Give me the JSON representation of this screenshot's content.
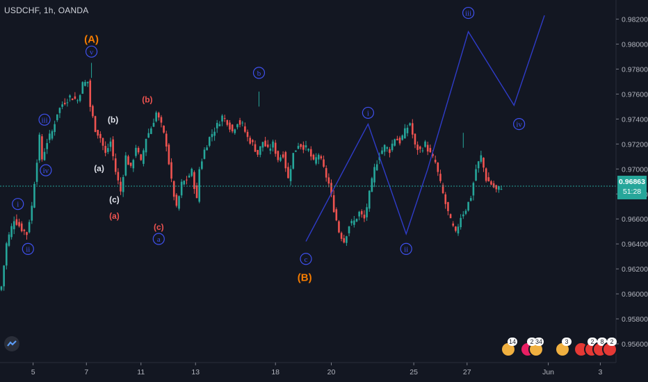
{
  "header": {
    "symbol_line": "USDCHF, 1h, OANDA"
  },
  "price_tag": {
    "price": "0.96863",
    "countdown": "51:28"
  },
  "colors": {
    "background": "#131722",
    "up": "#26a69a",
    "down": "#ef5350",
    "wave_blue": "#3f51f0",
    "wave_orange": "#f57c00",
    "wave_red": "#ef5350",
    "wave_white": "#e0e3eb",
    "price_line": "#26a69a"
  },
  "events": {
    "counts": [
      "14",
      "2",
      "34",
      "3",
      "2",
      "8",
      "2"
    ]
  },
  "chart_data": {
    "type": "candlestick",
    "ylim": [
      0.9545,
      0.9832
    ],
    "yticks": [
      "0.95600",
      "0.95800",
      "0.96000",
      "0.96200",
      "0.96400",
      "0.96600",
      "0.96800",
      "0.97000",
      "0.97200",
      "0.97400",
      "0.97600",
      "0.97800",
      "0.98000",
      "0.98200"
    ],
    "xticks": [
      "5",
      "7",
      "11",
      "13",
      "18",
      "20",
      "25",
      "27",
      "Jun",
      "3"
    ],
    "last_price": 0.96863,
    "price_path": [
      [
        0,
        0.9606
      ],
      [
        2,
        0.964
      ],
      [
        5,
        0.966
      ],
      [
        8,
        0.9652
      ],
      [
        10,
        0.9648
      ],
      [
        12,
        0.967
      ],
      [
        13,
        0.969
      ],
      [
        15,
        0.9725
      ],
      [
        16,
        0.9708
      ],
      [
        18,
        0.9722
      ],
      [
        20,
        0.973
      ],
      [
        22,
        0.9745
      ],
      [
        24,
        0.9752
      ],
      [
        27,
        0.9758
      ],
      [
        30,
        0.9755
      ],
      [
        32,
        0.9768
      ],
      [
        34,
        0.977
      ],
      [
        35,
        0.975
      ],
      [
        37,
        0.9732
      ],
      [
        39,
        0.9725
      ],
      [
        41,
        0.9712
      ],
      [
        43,
        0.9722
      ],
      [
        45,
        0.9698
      ],
      [
        47,
        0.9682
      ],
      [
        49,
        0.971
      ],
      [
        51,
        0.97
      ],
      [
        53,
        0.9718
      ],
      [
        55,
        0.9705
      ],
      [
        57,
        0.9725
      ],
      [
        59,
        0.9733
      ],
      [
        61,
        0.9745
      ],
      [
        63,
        0.9735
      ],
      [
        65,
        0.972
      ],
      [
        67,
        0.969
      ],
      [
        69,
        0.9668
      ],
      [
        71,
        0.9688
      ],
      [
        73,
        0.9692
      ],
      [
        75,
        0.9698
      ],
      [
        77,
        0.9675
      ],
      [
        78,
        0.97
      ],
      [
        80,
        0.9715
      ],
      [
        82,
        0.9725
      ],
      [
        85,
        0.9735
      ],
      [
        87,
        0.9742
      ],
      [
        89,
        0.9738
      ],
      [
        91,
        0.973
      ],
      [
        93,
        0.9738
      ],
      [
        95,
        0.9735
      ],
      [
        97,
        0.9725
      ],
      [
        99,
        0.972
      ],
      [
        101,
        0.9712
      ],
      [
        103,
        0.9722
      ],
      [
        105,
        0.9715
      ],
      [
        107,
        0.972
      ],
      [
        109,
        0.9708
      ],
      [
        111,
        0.9712
      ],
      [
        113,
        0.9692
      ],
      [
        115,
        0.9712
      ],
      [
        117,
        0.972
      ],
      [
        119,
        0.9718
      ],
      [
        121,
        0.9715
      ],
      [
        123,
        0.9705
      ],
      [
        125,
        0.9712
      ],
      [
        127,
        0.97
      ],
      [
        129,
        0.9688
      ],
      [
        131,
        0.9668
      ],
      [
        133,
        0.965
      ],
      [
        135,
        0.9642
      ],
      [
        137,
        0.9655
      ],
      [
        139,
        0.9658
      ],
      [
        141,
        0.9665
      ],
      [
        143,
        0.966
      ],
      [
        145,
        0.968
      ],
      [
        147,
        0.97
      ],
      [
        149,
        0.9712
      ],
      [
        151,
        0.9718
      ],
      [
        153,
        0.9715
      ],
      [
        155,
        0.9725
      ],
      [
        157,
        0.9722
      ],
      [
        159,
        0.973
      ],
      [
        161,
        0.9737
      ],
      [
        163,
        0.9718
      ],
      [
        165,
        0.9715
      ],
      [
        167,
        0.972
      ],
      [
        169,
        0.9712
      ],
      [
        171,
        0.9705
      ],
      [
        173,
        0.9688
      ],
      [
        175,
        0.9672
      ],
      [
        177,
        0.9658
      ],
      [
        179,
        0.9648
      ],
      [
        181,
        0.9662
      ],
      [
        183,
        0.9668
      ],
      [
        185,
        0.9678
      ],
      [
        187,
        0.97
      ],
      [
        189,
        0.971
      ],
      [
        191,
        0.9692
      ],
      [
        193,
        0.9688
      ],
      [
        195,
        0.9683
      ],
      [
        197,
        0.9686
      ]
    ],
    "wave_path_blue": [
      [
        0.97,
        0.966
      ],
      [
        0.97,
        0.968
      ]
    ],
    "labels": [
      {
        "text": "(A)",
        "color": "orange",
        "price": 0.9804,
        "slot": 35.5
      },
      {
        "text": "v",
        "circled": true,
        "color": "blue",
        "price": 0.9794,
        "slot": 35.5
      },
      {
        "text": "iii",
        "circled": true,
        "color": "blue",
        "price": 0.97395,
        "slot": 17
      },
      {
        "text": "iv",
        "circled": true,
        "color": "blue",
        "price": 0.9699,
        "slot": 17.5
      },
      {
        "text": "i",
        "circled": true,
        "color": "blue",
        "price": 0.9672,
        "slot": 6.5
      },
      {
        "text": "ii",
        "circled": true,
        "color": "blue",
        "price": 0.9636,
        "slot": 10.5
      },
      {
        "text": "(b)",
        "color": "white",
        "price": 0.974,
        "slot": 44
      },
      {
        "text": "(a)",
        "color": "white",
        "price": 0.9701,
        "slot": 38.5
      },
      {
        "text": "(c)",
        "color": "white",
        "price": 0.9676,
        "slot": 44.5
      },
      {
        "text": "(a)",
        "color": "red",
        "price": 0.9663,
        "slot": 44.5
      },
      {
        "text": "(b)",
        "color": "red",
        "price": 0.9756,
        "slot": 57.5
      },
      {
        "text": "(c)",
        "color": "red",
        "price": 0.9654,
        "slot": 62
      },
      {
        "text": "a",
        "circled": true,
        "color": "blue",
        "price": 0.9644,
        "slot": 62
      },
      {
        "text": "b",
        "circled": true,
        "color": "blue",
        "price": 0.9777,
        "slot": 101.5
      },
      {
        "text": "c",
        "circled": true,
        "color": "blue",
        "price": 0.9628,
        "slot": 120
      },
      {
        "text": "(B)",
        "color": "orange",
        "price": 0.9613,
        "slot": 119.5
      },
      {
        "text": "i",
        "circled": true,
        "color": "blue",
        "price": 0.9745,
        "slot": 144.5
      },
      {
        "text": "ii",
        "circled": true,
        "color": "blue",
        "price": 0.9636,
        "slot": 159.5
      },
      {
        "text": "iii",
        "circled": true,
        "color": "blue",
        "price": 0.9825,
        "slot": 184
      },
      {
        "text": "iv",
        "circled": true,
        "color": "blue",
        "price": 0.9736,
        "slot": 204
      }
    ],
    "projection": [
      {
        "slot": 168,
        "price": 0.97
      },
      {
        "slot": 184,
        "price": 0.981
      },
      {
        "slot": 202,
        "price": 0.9751
      },
      {
        "slot": 214,
        "price": 0.9823
      }
    ]
  }
}
